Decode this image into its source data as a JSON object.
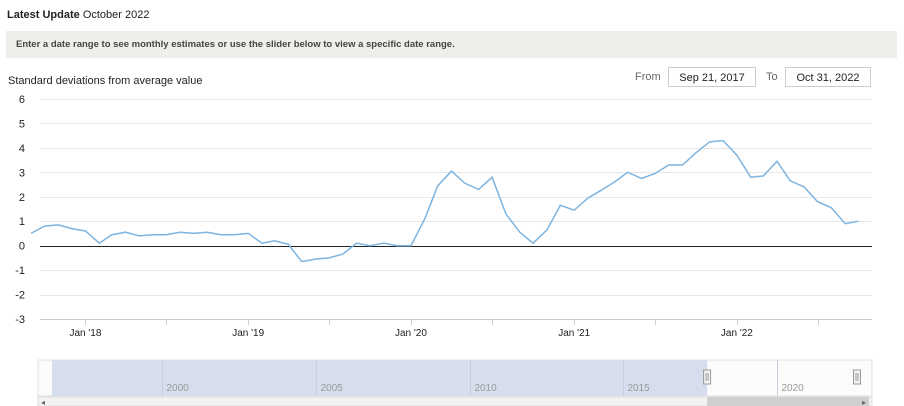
{
  "header": {
    "update_label": "Latest Update",
    "update_value": "October 2022"
  },
  "banner": {
    "text": "Enter a date range to see monthly estimates or use the slider below to view a specific date range."
  },
  "range": {
    "from_label": "From",
    "from_value": "Sep 21, 2017",
    "to_label": "To",
    "to_value": "Oct 31, 2022"
  },
  "colors": {
    "series": "#7db4e0",
    "zero_line": "#222222",
    "grid": "#e6e6e6",
    "navigator_mask": "#d6deee"
  },
  "chart_data": {
    "type": "line",
    "ylabel": "Standard deviations from average value",
    "ylim": [
      -3,
      6
    ],
    "yticks": [
      "6",
      "5",
      "4",
      "3",
      "2",
      "1",
      "0",
      "-1",
      "-2",
      "-3"
    ],
    "xlim": [
      "2017-09-21",
      "2022-10-31"
    ],
    "xticks": [
      {
        "date": "2018-01-01",
        "label": "Jan '18"
      },
      {
        "date": "2019-01-01",
        "label": "Jan '19"
      },
      {
        "date": "2020-01-01",
        "label": "Jan '20"
      },
      {
        "date": "2021-01-01",
        "label": "Jan '21"
      },
      {
        "date": "2022-01-01",
        "label": "Jan '22"
      }
    ],
    "x": [
      "2017-09-01",
      "2017-10-01",
      "2017-11-01",
      "2017-12-01",
      "2018-01-01",
      "2018-02-01",
      "2018-03-01",
      "2018-04-01",
      "2018-05-01",
      "2018-06-01",
      "2018-07-01",
      "2018-08-01",
      "2018-09-01",
      "2018-10-01",
      "2018-11-01",
      "2018-12-01",
      "2019-01-01",
      "2019-02-01",
      "2019-03-01",
      "2019-04-01",
      "2019-05-01",
      "2019-06-01",
      "2019-07-01",
      "2019-08-01",
      "2019-09-01",
      "2019-10-01",
      "2019-11-01",
      "2019-12-01",
      "2020-01-01",
      "2020-02-01",
      "2020-03-01",
      "2020-04-01",
      "2020-05-01",
      "2020-06-01",
      "2020-07-01",
      "2020-08-01",
      "2020-09-01",
      "2020-10-01",
      "2020-11-01",
      "2020-12-01",
      "2021-01-01",
      "2021-02-01",
      "2021-03-01",
      "2021-04-01",
      "2021-05-01",
      "2021-06-01",
      "2021-07-01",
      "2021-08-01",
      "2021-09-01",
      "2021-10-01",
      "2021-11-01",
      "2021-12-01",
      "2022-01-01",
      "2022-02-01",
      "2022-03-01",
      "2022-04-01",
      "2022-05-01",
      "2022-06-01",
      "2022-07-01",
      "2022-08-01",
      "2022-09-01",
      "2022-10-01"
    ],
    "series": [
      {
        "values": [
          0.5,
          0.8,
          0.85,
          0.7,
          0.6,
          0.1,
          0.45,
          0.55,
          0.4,
          0.45,
          0.45,
          0.55,
          0.5,
          0.55,
          0.45,
          0.45,
          0.5,
          0.1,
          0.2,
          0.05,
          -0.65,
          -0.55,
          -0.5,
          -0.35,
          0.1,
          0.0,
          0.1,
          0.0,
          0.0,
          1.1,
          2.45,
          3.05,
          2.55,
          2.3,
          2.8,
          1.3,
          0.55,
          0.1,
          0.65,
          1.65,
          1.45,
          1.95,
          2.25,
          2.6,
          3.0,
          2.75,
          2.95,
          3.3,
          3.3,
          3.8,
          4.25,
          4.3,
          3.7,
          2.8,
          2.85,
          3.45,
          2.65,
          2.4,
          1.8,
          1.55,
          0.9,
          1.0
        ]
      }
    ],
    "navigator": {
      "ticks": [
        "2000",
        "2005",
        "2010",
        "2015",
        "2020"
      ],
      "range_start": "1996-06-01",
      "range_end": "2023-02-01",
      "selected_start": "2017-09-21",
      "selected_end": "2022-10-31"
    }
  }
}
